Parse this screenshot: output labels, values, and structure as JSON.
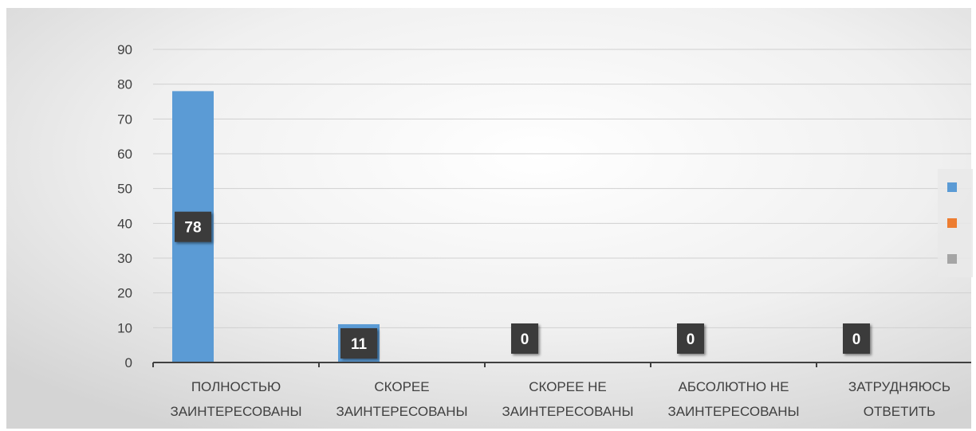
{
  "chart_data": {
    "type": "bar",
    "categories": [
      [
        "ПОЛНОСТЬЮ",
        "ЗАИНТЕРЕСОВАНЫ"
      ],
      [
        "СКОРЕЕ",
        "ЗАИНТЕРЕСОВАНЫ"
      ],
      [
        "СКОРЕЕ НЕ",
        "ЗАИНТЕРЕСОВАНЫ"
      ],
      [
        "АБСОЛЮТНО НЕ",
        "ЗАИНТЕРЕСОВАНЫ"
      ],
      [
        "ЗАТРУДНЯЮСЬ",
        "ОТВЕТИТЬ"
      ]
    ],
    "series": [
      {
        "values": [
          78,
          11,
          0,
          0,
          0
        ],
        "color": "#5b9bd5"
      },
      {
        "values": [
          0,
          0,
          0,
          0,
          0
        ],
        "color": "#ed7d31"
      },
      {
        "values": [
          0,
          0,
          0,
          0,
          0
        ],
        "color": "#a5a5a5"
      }
    ],
    "data_labels": [
      "78",
      "11",
      "0",
      "0",
      "0"
    ],
    "ylim": [
      0,
      90
    ],
    "yticks": [
      0,
      10,
      20,
      30,
      40,
      50,
      60,
      70,
      80,
      90
    ],
    "grid": true,
    "legend": {
      "placement": "right",
      "colors": [
        "#5b9bd5",
        "#ed7d31",
        "#a5a5a5"
      ]
    },
    "title": "",
    "xlabel": "",
    "ylabel": ""
  }
}
